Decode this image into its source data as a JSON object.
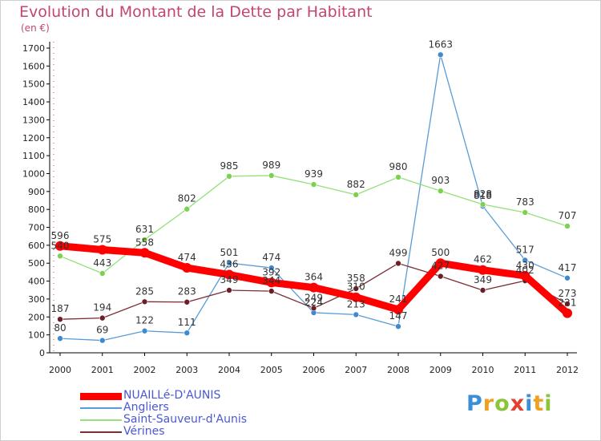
{
  "title": "Evolution du Montant de la Dette par Habitant",
  "unit": "(en €)",
  "brand": {
    "text": "Proxiti",
    "colors": [
      "#3a8fd6",
      "#f0a020",
      "#8ac43a",
      "#e33e2e",
      "#3a8fd6",
      "#f0a020",
      "#8ac43a"
    ]
  },
  "chart_data": {
    "type": "line",
    "x": [
      "2000",
      "2001",
      "2002",
      "2003",
      "2004",
      "2005",
      "2006",
      "2007",
      "2008",
      "2009",
      "2010",
      "2011",
      "2012"
    ],
    "ylim": [
      0,
      1700
    ],
    "yticks": [
      0,
      100,
      200,
      300,
      400,
      500,
      600,
      700,
      800,
      900,
      1000,
      1100,
      1200,
      1300,
      1400,
      1500,
      1600,
      1700
    ],
    "grid": false,
    "legend": "bottom-left",
    "series": [
      {
        "name": "NUAILLé-D'AUNIS",
        "color": "#ff0000",
        "width": 9,
        "marker": 6,
        "values": [
          596,
          575,
          558,
          474,
          436,
          392,
          364,
          310,
          241,
          500,
          462,
          430,
          221
        ]
      },
      {
        "name": "Angliers",
        "color": "#5b9bd5",
        "width": 1.3,
        "marker": 3.5,
        "markerFill": "#3f89cf",
        "values": [
          80,
          69,
          122,
          111,
          501,
          474,
          224,
          213,
          147,
          1663,
          818,
          517,
          417
        ]
      },
      {
        "name": "Saint-Sauveur-d'Aunis",
        "color": "#94e07a",
        "width": 1.3,
        "marker": 3.5,
        "markerFill": "#7cd150",
        "values": [
          540,
          443,
          631,
          802,
          985,
          989,
          939,
          882,
          980,
          903,
          828,
          783,
          707
        ]
      },
      {
        "name": "Vérines",
        "color": "#7a2e35",
        "width": 1.3,
        "marker": 3.5,
        "markerFill": "#6b1f26",
        "values": [
          187,
          194,
          285,
          283,
          349,
          344,
          249,
          358,
          499,
          427,
          349,
          402,
          273
        ]
      }
    ]
  }
}
